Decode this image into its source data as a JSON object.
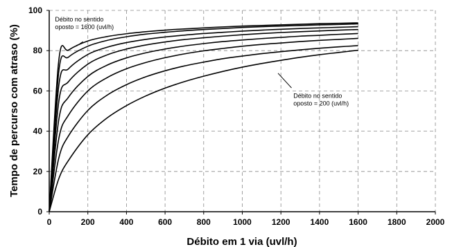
{
  "chart_data": {
    "type": "line",
    "title": "",
    "xlabel": "Débito em 1 via (uvl/h)",
    "ylabel": "Tempo de percurso com atraso (%)",
    "xlim": [
      0,
      2000
    ],
    "ylim": [
      0,
      100
    ],
    "x_ticks": [
      "0",
      "200",
      "400",
      "600",
      "800",
      "1000",
      "1200",
      "1400",
      "1600",
      "1800",
      "2000"
    ],
    "y_ticks": [
      "0",
      "20",
      "40",
      "60",
      "80",
      "100"
    ],
    "grid": "dashed",
    "legend": "none",
    "x": [
      0,
      50,
      100,
      200,
      300,
      400,
      500,
      600,
      700,
      800,
      900,
      1000,
      1100,
      1200,
      1300,
      1400,
      1500,
      1600
    ],
    "series": [
      {
        "values": [
          0,
          75.5,
          80.3,
          84.8,
          87.0,
          88.4,
          89.4,
          90.2,
          90.8,
          91.3,
          91.8,
          92.2,
          92.5,
          92.8,
          93.1,
          93.4,
          93.6,
          93.8
        ]
      },
      {
        "values": [
          0,
          70.0,
          76.8,
          82.2,
          85.1,
          86.9,
          88.2,
          89.1,
          89.9,
          90.5,
          91.0,
          91.5,
          91.9,
          92.2,
          92.5,
          92.8,
          93.0,
          93.3
        ]
      },
      {
        "values": [
          0,
          63.0,
          71.0,
          78.1,
          81.7,
          84.0,
          85.6,
          86.8,
          87.7,
          88.5,
          89.1,
          89.7,
          90.2,
          90.6,
          91.0,
          91.3,
          91.6,
          91.9
        ]
      },
      {
        "values": [
          0,
          55.0,
          64.6,
          73.3,
          77.9,
          80.8,
          82.8,
          84.3,
          85.5,
          86.4,
          87.2,
          87.9,
          88.5,
          89.0,
          89.4,
          89.8,
          90.2,
          90.5
        ]
      },
      {
        "values": [
          0,
          46.0,
          56.9,
          67.2,
          72.8,
          76.4,
          78.9,
          80.8,
          82.3,
          83.5,
          84.5,
          85.3,
          86.0,
          86.6,
          87.2,
          87.6,
          88.1,
          88.5
        ]
      },
      {
        "values": [
          0,
          36.5,
          48.0,
          60.0,
          66.6,
          71.0,
          74.1,
          76.5,
          78.4,
          79.9,
          81.1,
          82.2,
          83.1,
          83.8,
          84.5,
          85.1,
          85.6,
          86.1
        ]
      },
      {
        "values": [
          0,
          26.8,
          37.7,
          50.3,
          57.9,
          63.1,
          67.0,
          70.0,
          72.4,
          74.3,
          76.0,
          77.3,
          78.5,
          79.5,
          80.4,
          81.2,
          81.9,
          82.5
        ]
      },
      {
        "values": [
          0,
          16.5,
          25.5,
          38.2,
          46.6,
          52.7,
          57.5,
          61.4,
          64.6,
          67.3,
          69.7,
          71.8,
          73.6,
          75.2,
          76.7,
          78.0,
          79.1,
          80.2
        ]
      }
    ],
    "annotations": [
      {
        "lines": [
          "Débito no sentido",
          "oposto = 1600 (uvl/h)"
        ],
        "text_at": [
          30,
          94.5
        ],
        "arrow_from": [
          175,
          84.5
        ],
        "arrow_to": [
          140,
          82.2
        ]
      },
      {
        "lines": [
          "Débito no sentido",
          "oposto = 200 (uvl/h)"
        ],
        "text_at": [
          1265,
          56.5
        ],
        "arrow_from": [
          1255,
          61.5
        ],
        "arrow_to": [
          1185,
          68.8
        ]
      }
    ]
  }
}
